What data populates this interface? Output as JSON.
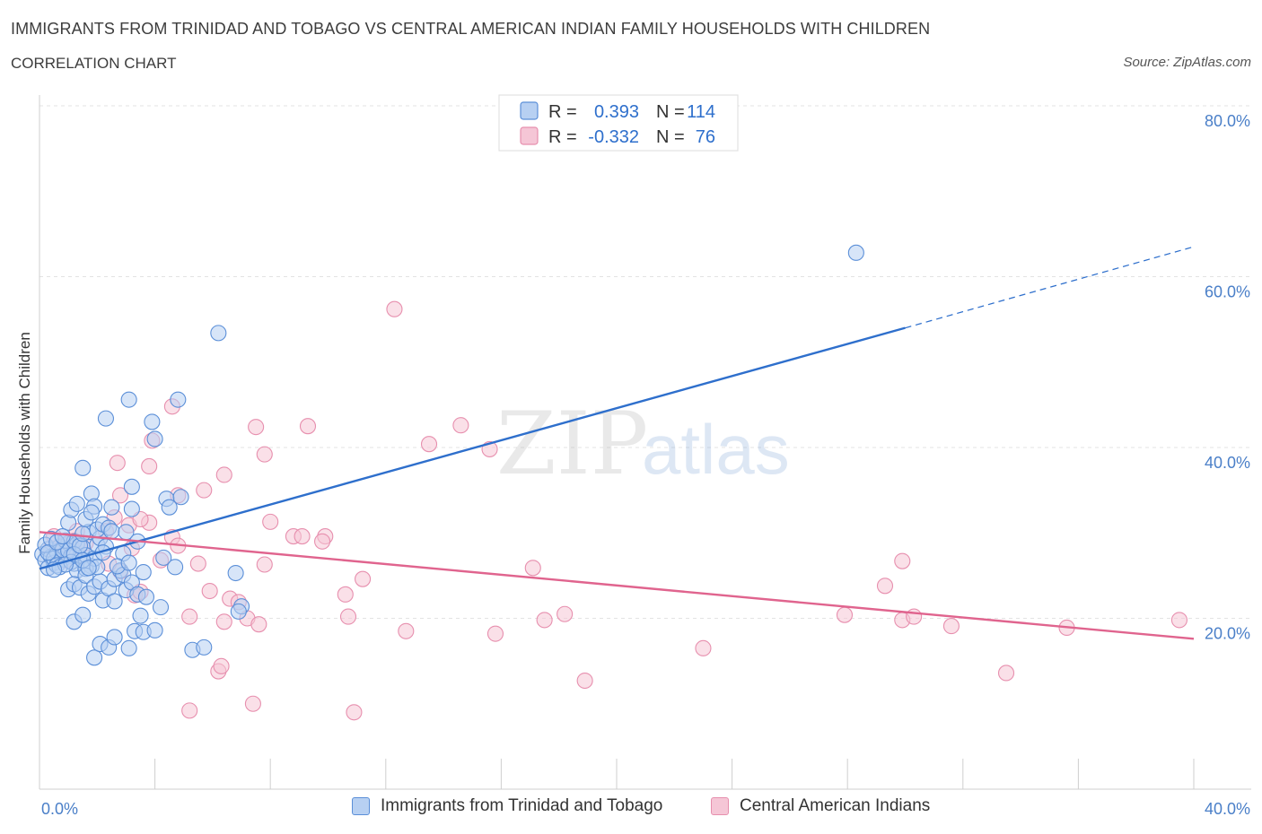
{
  "header": {
    "title": "IMMIGRANTS FROM TRINIDAD AND TOBAGO VS CENTRAL AMERICAN INDIAN FAMILY HOUSEHOLDS WITH CHILDREN",
    "subtitle": "CORRELATION CHART",
    "source": "Source: ZipAtlas.com"
  },
  "watermark": {
    "zip": "ZIP",
    "atlas": "atlas"
  },
  "legend": {
    "blue": {
      "r_label": "R =",
      "r_value": "0.393",
      "n_label": "N =",
      "n_value": "114"
    },
    "pink": {
      "r_label": "R =",
      "r_value": "-0.332",
      "n_label": "N =",
      "n_value": "76"
    }
  },
  "colors": {
    "blue": "#5b8fd8",
    "blue_line": "#2e6fcc",
    "blue_fill": "#b7d0f2",
    "pink": "#e78fae",
    "pink_line": "#e0648e",
    "pink_fill": "#f5c6d6",
    "grid": "#e3e3e3",
    "tick_text": "#4a7fc8"
  },
  "chart_data": {
    "type": "scatter",
    "title": "IMMIGRANTS FROM TRINIDAD AND TOBAGO VS CENTRAL AMERICAN INDIAN FAMILY HOUSEHOLDS WITH CHILDREN",
    "ylabel": "Family Households with Children",
    "xlabel": "",
    "xlim": [
      0,
      40
    ],
    "ylim": [
      0,
      80
    ],
    "x_tick_labels": [
      "0.0%",
      "40.0%"
    ],
    "y_tick_labels": [
      "20.0%",
      "40.0%",
      "60.0%",
      "80.0%"
    ],
    "y_ticks": [
      20,
      40,
      60,
      80
    ],
    "grid": true,
    "legend_position": "top-center",
    "series": [
      {
        "name": "Immigrants from Trinidad and Tobago",
        "color": "#5b8fd8",
        "r": 0.393,
        "n": 114,
        "trend": {
          "x0": 0,
          "y0": 25.8,
          "x1": 30,
          "y1": 54.0,
          "dash_to_x": 40,
          "dash_to_y": 63.5
        },
        "points": [
          [
            0.1,
            27.5
          ],
          [
            0.2,
            26.8
          ],
          [
            0.3,
            28.1
          ],
          [
            0.4,
            27.2
          ],
          [
            0.5,
            26.5
          ],
          [
            0.6,
            27.8
          ],
          [
            0.7,
            28.4
          ],
          [
            0.8,
            26.9
          ],
          [
            0.9,
            27.6
          ],
          [
            1.0,
            28.8
          ],
          [
            0.2,
            28.6
          ],
          [
            0.3,
            25.9
          ],
          [
            0.5,
            27.0
          ],
          [
            0.6,
            26.2
          ],
          [
            0.8,
            28.0
          ],
          [
            0.9,
            29.1
          ],
          [
            1.1,
            27.3
          ],
          [
            1.2,
            26.4
          ],
          [
            1.3,
            28.7
          ],
          [
            1.4,
            27.1
          ],
          [
            0.4,
            29.3
          ],
          [
            0.7,
            26.0
          ],
          [
            1.0,
            27.9
          ],
          [
            1.1,
            26.6
          ],
          [
            1.2,
            29.0
          ],
          [
            1.3,
            25.6
          ],
          [
            1.5,
            28.3
          ],
          [
            1.6,
            27.4
          ],
          [
            1.7,
            30.1
          ],
          [
            1.8,
            26.1
          ],
          [
            0.3,
            27.7
          ],
          [
            0.6,
            28.9
          ],
          [
            0.9,
            26.3
          ],
          [
            1.2,
            27.5
          ],
          [
            1.4,
            28.5
          ],
          [
            1.5,
            29.9
          ],
          [
            1.6,
            25.8
          ],
          [
            1.9,
            27.0
          ],
          [
            2.0,
            28.6
          ],
          [
            2.1,
            29.4
          ],
          [
            1.0,
            31.2
          ],
          [
            1.1,
            32.7
          ],
          [
            1.3,
            33.4
          ],
          [
            1.6,
            31.6
          ],
          [
            1.8,
            34.6
          ],
          [
            1.9,
            33.1
          ],
          [
            2.0,
            30.4
          ],
          [
            2.2,
            31.0
          ],
          [
            2.4,
            30.6
          ],
          [
            2.5,
            30.2
          ],
          [
            1.0,
            23.4
          ],
          [
            1.2,
            24.0
          ],
          [
            1.4,
            23.6
          ],
          [
            1.6,
            25.0
          ],
          [
            1.7,
            22.9
          ],
          [
            1.9,
            23.7
          ],
          [
            2.1,
            24.3
          ],
          [
            2.2,
            22.1
          ],
          [
            2.4,
            23.5
          ],
          [
            2.6,
            24.6
          ],
          [
            1.2,
            19.6
          ],
          [
            1.5,
            20.4
          ],
          [
            1.9,
            15.4
          ],
          [
            2.1,
            17.0
          ],
          [
            2.4,
            16.6
          ],
          [
            2.6,
            17.8
          ],
          [
            3.1,
            16.5
          ],
          [
            3.3,
            18.5
          ],
          [
            3.5,
            20.3
          ],
          [
            3.6,
            18.4
          ],
          [
            2.6,
            22.0
          ],
          [
            2.8,
            25.6
          ],
          [
            2.9,
            25.1
          ],
          [
            3.0,
            23.3
          ],
          [
            3.2,
            24.2
          ],
          [
            3.4,
            22.8
          ],
          [
            3.6,
            25.4
          ],
          [
            3.7,
            22.5
          ],
          [
            4.2,
            21.3
          ],
          [
            4.0,
            18.6
          ],
          [
            2.3,
            43.4
          ],
          [
            3.1,
            45.6
          ],
          [
            3.9,
            43.0
          ],
          [
            4.0,
            41.0
          ],
          [
            4.8,
            45.6
          ],
          [
            3.2,
            35.4
          ],
          [
            4.4,
            34.0
          ],
          [
            4.9,
            34.2
          ],
          [
            3.2,
            32.8
          ],
          [
            4.5,
            33.0
          ],
          [
            3.0,
            30.1
          ],
          [
            3.4,
            29.0
          ],
          [
            2.9,
            27.6
          ],
          [
            4.3,
            27.1
          ],
          [
            4.7,
            26.0
          ],
          [
            1.5,
            37.6
          ],
          [
            2.5,
            33.0
          ],
          [
            1.8,
            32.4
          ],
          [
            2.3,
            28.4
          ],
          [
            2.0,
            26.0
          ],
          [
            6.2,
            53.4
          ],
          [
            6.8,
            25.3
          ],
          [
            7.0,
            21.4
          ],
          [
            6.9,
            20.8
          ],
          [
            5.3,
            16.3
          ],
          [
            5.7,
            16.6
          ],
          [
            2.7,
            26.1
          ],
          [
            3.1,
            26.5
          ],
          [
            1.5,
            26.8
          ],
          [
            0.8,
            29.6
          ],
          [
            28.3,
            62.8
          ],
          [
            1.7,
            25.9
          ],
          [
            2.2,
            27.7
          ],
          [
            0.5,
            25.7
          ]
        ]
      },
      {
        "name": "Central American Indians",
        "color": "#e78fae",
        "r": -0.332,
        "n": 76,
        "trend": {
          "x0": 0,
          "y0": 30.1,
          "x1": 40,
          "y1": 17.6
        },
        "points": [
          [
            0.4,
            28.2
          ],
          [
            0.6,
            27.5
          ],
          [
            0.8,
            28.6
          ],
          [
            1.0,
            27.9
          ],
          [
            1.2,
            29.1
          ],
          [
            1.4,
            28.4
          ],
          [
            0.5,
            29.6
          ],
          [
            0.9,
            26.8
          ],
          [
            1.3,
            30.2
          ],
          [
            1.6,
            28.8
          ],
          [
            2.3,
            30.2
          ],
          [
            2.6,
            31.8
          ],
          [
            2.8,
            25.5
          ],
          [
            2.4,
            26.4
          ],
          [
            3.1,
            30.9
          ],
          [
            3.2,
            28.2
          ],
          [
            3.8,
            31.2
          ],
          [
            4.2,
            26.8
          ],
          [
            4.6,
            29.5
          ],
          [
            4.8,
            28.5
          ],
          [
            2.7,
            38.2
          ],
          [
            2.8,
            34.4
          ],
          [
            3.5,
            31.6
          ],
          [
            3.8,
            37.8
          ],
          [
            3.9,
            40.8
          ],
          [
            4.6,
            44.8
          ],
          [
            4.8,
            34.4
          ],
          [
            5.7,
            35.0
          ],
          [
            6.4,
            36.8
          ],
          [
            5.5,
            26.4
          ],
          [
            3.3,
            22.7
          ],
          [
            3.5,
            23.1
          ],
          [
            5.2,
            20.2
          ],
          [
            5.9,
            23.2
          ],
          [
            6.4,
            19.6
          ],
          [
            6.6,
            22.3
          ],
          [
            6.9,
            21.9
          ],
          [
            7.2,
            20.0
          ],
          [
            7.6,
            19.3
          ],
          [
            7.8,
            26.3
          ],
          [
            5.2,
            9.2
          ],
          [
            6.2,
            13.8
          ],
          [
            6.3,
            14.4
          ],
          [
            7.4,
            10.0
          ],
          [
            7.5,
            42.4
          ],
          [
            7.8,
            39.2
          ],
          [
            8.0,
            31.3
          ],
          [
            8.8,
            29.6
          ],
          [
            9.1,
            29.6
          ],
          [
            9.3,
            42.5
          ],
          [
            9.9,
            29.6
          ],
          [
            10.6,
            22.8
          ],
          [
            10.7,
            20.2
          ],
          [
            10.9,
            9.0
          ],
          [
            11.2,
            24.6
          ],
          [
            12.3,
            56.2
          ],
          [
            12.7,
            18.5
          ],
          [
            13.5,
            40.4
          ],
          [
            14.6,
            42.6
          ],
          [
            15.6,
            39.8
          ],
          [
            15.8,
            18.2
          ],
          [
            17.1,
            25.9
          ],
          [
            17.5,
            19.8
          ],
          [
            18.2,
            20.5
          ],
          [
            18.9,
            12.7
          ],
          [
            23.0,
            16.5
          ],
          [
            27.9,
            20.4
          ],
          [
            29.3,
            23.8
          ],
          [
            29.9,
            26.7
          ],
          [
            29.9,
            19.8
          ],
          [
            30.3,
            20.2
          ],
          [
            31.6,
            19.1
          ],
          [
            33.5,
            13.6
          ],
          [
            35.6,
            18.9
          ],
          [
            39.5,
            19.8
          ],
          [
            9.8,
            29.0
          ]
        ]
      }
    ]
  },
  "bottom_legend": {
    "blue_label": "Immigrants from Trinidad and Tobago",
    "pink_label": "Central American Indians"
  }
}
